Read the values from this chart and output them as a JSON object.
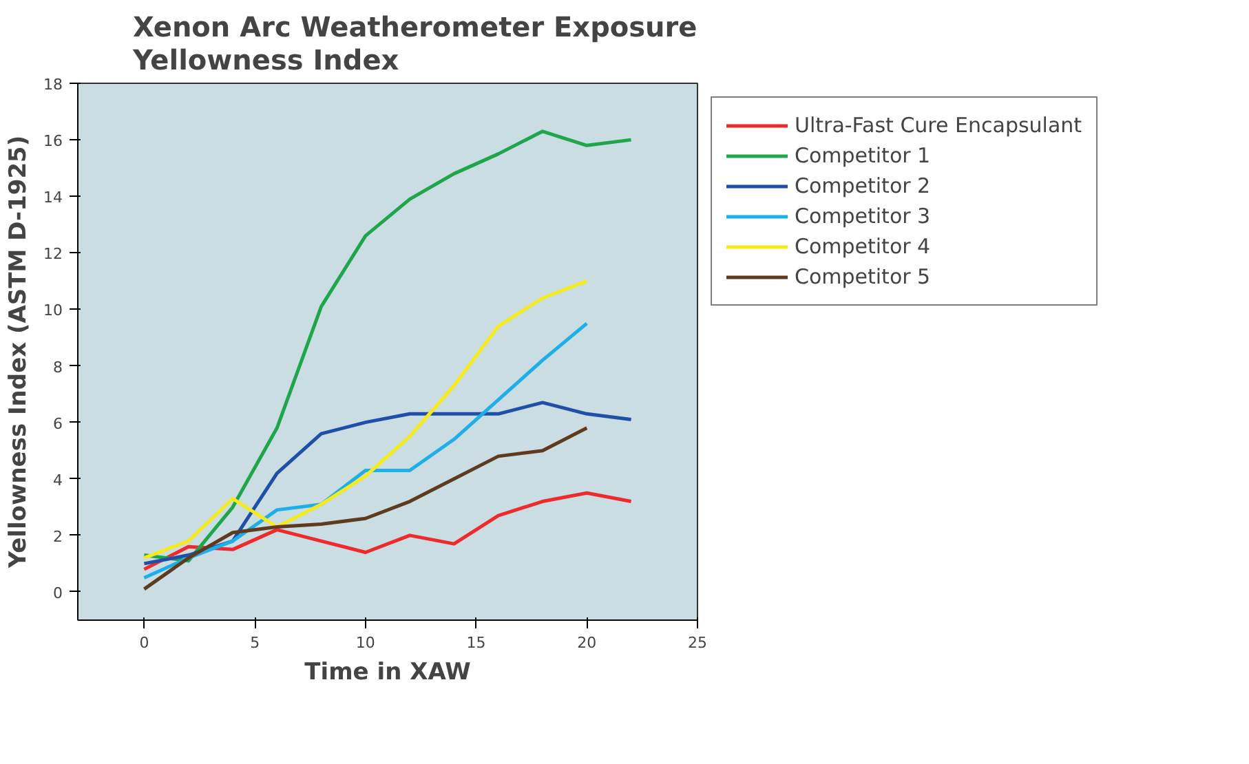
{
  "chart_data": {
    "type": "line",
    "title": "Xenon Arc Weatherometer Exposure\nYellowness Index",
    "xlabel": "Time in XAW",
    "ylabel": "Yellowness Index (ASTM D-1925)",
    "xlim": [
      -3,
      25
    ],
    "xticks": [
      0,
      5,
      10,
      15,
      20,
      25
    ],
    "ylim": [
      -1,
      18
    ],
    "yticks": [
      0,
      2,
      4,
      6,
      8,
      10,
      12,
      14,
      16,
      18
    ],
    "grid": false,
    "legend": "right",
    "marker": "none",
    "line_style": "solid",
    "series": [
      {
        "name": "Ultra-Fast Cure Encapsulant",
        "color": "#ee2a2a",
        "x": [
          0,
          2,
          4,
          6,
          8,
          10,
          12,
          14,
          16,
          18,
          20,
          22
        ],
        "values": [
          0.8,
          1.6,
          1.5,
          2.2,
          1.8,
          1.4,
          2.0,
          1.7,
          2.7,
          3.2,
          3.5,
          3.2
        ]
      },
      {
        "name": "Competitor 1",
        "color": "#1fa64a",
        "x": [
          0,
          2,
          4,
          6,
          8,
          10,
          12,
          14,
          16,
          18,
          20,
          22
        ],
        "values": [
          1.3,
          1.1,
          3.0,
          5.8,
          10.1,
          12.6,
          13.9,
          14.8,
          15.5,
          16.3,
          15.8,
          16.0
        ]
      },
      {
        "name": "Competitor 2",
        "color": "#1f4fa8",
        "x": [
          0,
          2,
          4,
          6,
          8,
          10,
          12,
          14,
          16,
          18,
          20,
          22
        ],
        "values": [
          1.0,
          1.3,
          1.8,
          4.2,
          5.6,
          6.0,
          6.3,
          6.3,
          6.3,
          6.7,
          6.3,
          6.1
        ]
      },
      {
        "name": "Competitor 3",
        "color": "#1eaee8",
        "x": [
          0,
          2,
          4,
          6,
          8,
          10,
          12,
          14,
          16,
          18,
          20
        ],
        "values": [
          0.5,
          1.2,
          1.8,
          2.9,
          3.1,
          4.3,
          4.3,
          5.4,
          6.8,
          8.2,
          9.5
        ]
      },
      {
        "name": "Competitor 4",
        "color": "#f5ea1c",
        "x": [
          0,
          2,
          4,
          6,
          8,
          10,
          12,
          14,
          16,
          18,
          20
        ],
        "values": [
          1.2,
          1.8,
          3.3,
          2.3,
          3.1,
          4.1,
          5.5,
          7.3,
          9.4,
          10.4,
          11.0
        ]
      },
      {
        "name": "Competitor 5",
        "color": "#5e3b1e",
        "x": [
          0,
          2,
          4,
          6,
          8,
          10,
          12,
          14,
          16,
          18,
          20
        ],
        "values": [
          0.1,
          1.2,
          2.1,
          2.3,
          2.4,
          2.6,
          3.2,
          4.0,
          4.8,
          5.0,
          5.8
        ]
      }
    ]
  }
}
